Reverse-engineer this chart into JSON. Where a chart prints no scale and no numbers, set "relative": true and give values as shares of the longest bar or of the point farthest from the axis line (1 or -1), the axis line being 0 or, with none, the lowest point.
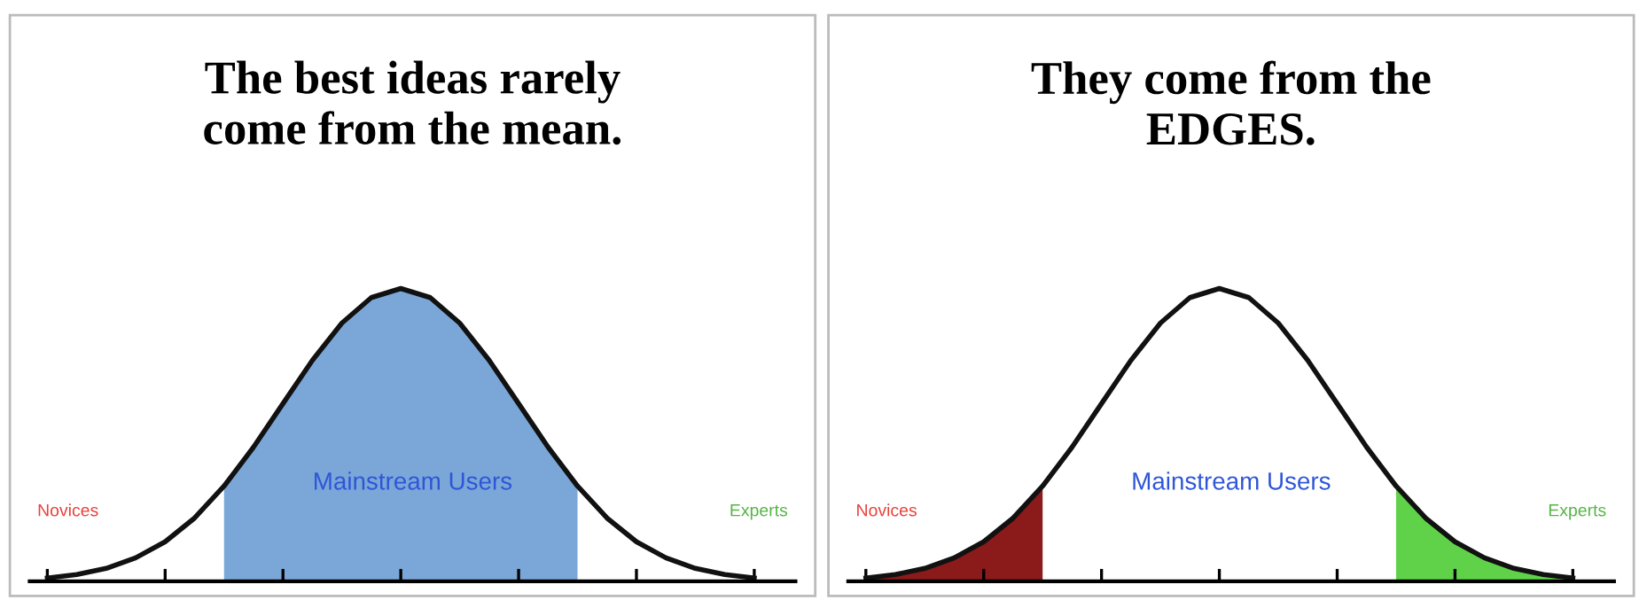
{
  "chart_data": [
    {
      "type": "line",
      "title": "The best ideas rarely\ncome from the mean.",
      "relative": true,
      "grid": false,
      "legend": false,
      "categories": [
        null,
        null,
        null,
        null,
        null,
        null,
        null,
        null,
        null,
        null,
        null,
        null,
        null,
        null,
        null,
        null,
        null,
        null,
        null,
        null,
        null,
        null,
        null,
        null,
        null
      ],
      "series": [
        {
          "type": "area",
          "color": "#7ba7d8",
          "values": [
            null,
            null,
            null,
            null,
            null,
            null,
            0.325,
            0.458,
            0.607,
            0.755,
            0.882,
            0.969,
            1,
            0.969,
            0.882,
            0.755,
            0.607,
            0.458,
            0.325,
            null,
            null,
            null,
            null,
            null,
            null
          ]
        },
        {
          "color": "#111111",
          "values": [
            0.011,
            0.023,
            0.044,
            0.08,
            0.135,
            0.216,
            0.325,
            0.458,
            0.607,
            0.755,
            0.882,
            0.969,
            1,
            0.969,
            0.882,
            0.755,
            0.607,
            0.458,
            0.325,
            0.216,
            0.135,
            0.08,
            0.044,
            0.023,
            0.011
          ]
        }
      ],
      "annotations": [
        "Novices",
        "Mainstream Users",
        "Experts"
      ]
    },
    {
      "type": "line",
      "title": "They come from the\nEDGES.",
      "relative": true,
      "grid": false,
      "legend": false,
      "categories": [
        null,
        null,
        null,
        null,
        null,
        null,
        null,
        null,
        null,
        null,
        null,
        null,
        null,
        null,
        null,
        null,
        null,
        null,
        null,
        null,
        null,
        null,
        null,
        null,
        null
      ],
      "series": [
        {
          "type": "area",
          "color": "#8b1a1a",
          "values": [
            0.011,
            0.023,
            0.044,
            0.08,
            0.135,
            0.216,
            0.325,
            null,
            null,
            null,
            null,
            null,
            null,
            null,
            null,
            null,
            null,
            null,
            null,
            null,
            null,
            null,
            null,
            null,
            null
          ]
        },
        {
          "type": "area",
          "color": "#5fd24a",
          "values": [
            null,
            null,
            null,
            null,
            null,
            null,
            null,
            null,
            null,
            null,
            null,
            null,
            null,
            null,
            null,
            null,
            null,
            null,
            0.325,
            0.216,
            0.135,
            0.08,
            0.044,
            0.023,
            0.011
          ]
        },
        {
          "color": "#111111",
          "values": [
            0.011,
            0.023,
            0.044,
            0.08,
            0.135,
            0.216,
            0.325,
            0.458,
            0.607,
            0.755,
            0.882,
            0.969,
            1,
            0.969,
            0.882,
            0.755,
            0.607,
            0.458,
            0.325,
            0.216,
            0.135,
            0.08,
            0.044,
            0.023,
            0.011
          ]
        }
      ],
      "annotations": [
        "Novices",
        "Mainstream Users",
        "Experts"
      ]
    }
  ]
}
